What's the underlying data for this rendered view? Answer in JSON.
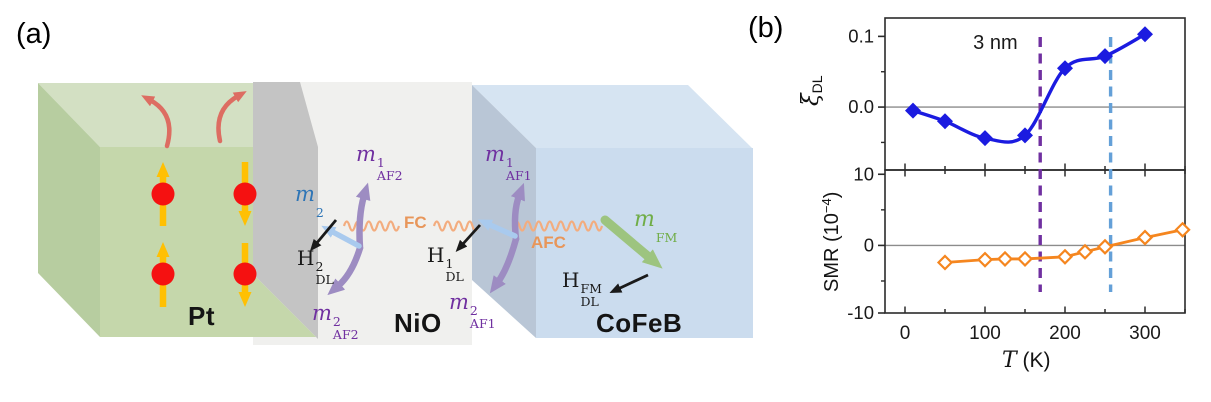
{
  "figure": {
    "panel_a_label": "(a)",
    "panel_b_label": "(b)"
  },
  "panel_a": {
    "layers": {
      "pt": "Pt",
      "nio": "NiO",
      "cofeb": "CoFeB"
    },
    "labels": {
      "m2": {
        "base": "m",
        "sub": "2"
      },
      "maf2_top": {
        "base": "m",
        "sup": "1",
        "sub": "AF2"
      },
      "maf2_bottom": {
        "base": "m",
        "sup": "2",
        "sub": "AF2"
      },
      "hdl2": {
        "base": "H",
        "sup": "2",
        "sub": "DL"
      },
      "fc": "FC",
      "maf1_top": {
        "base": "m",
        "sup": "1",
        "sub": "AF1"
      },
      "maf1_bottom": {
        "base": "m",
        "sup": "2",
        "sub": "AF1"
      },
      "hdl1": {
        "base": "H",
        "sup": "1",
        "sub": "DL"
      },
      "afc": "AFC",
      "mfm": {
        "base": "m",
        "sub": "FM"
      },
      "hdlfm": {
        "base": "H",
        "sup": "FM",
        "sub": "DL"
      }
    },
    "colors": {
      "pt_top": "#d3e0c3",
      "pt_front": "#c5d7ab",
      "pt_left": "#b7cda0",
      "interface_gray": "#c4c4c4",
      "nio_bg": "#f0f0ee",
      "cofeb_side": "#b9c6d6",
      "cofeb_top": "#d6e4f2",
      "cofeb_front": "#cbdcee",
      "spin_arrow": "#ffc003",
      "electron_dot": "#f51111",
      "deflect_arrow": "#dd6d62",
      "af_arrow": "#9d8cc2",
      "m_small_arrow": "#a9caee",
      "fm_arrow": "#9dc47f",
      "wave": "#f3ac7e",
      "field_arrow": "#1a1a1a",
      "m2_text": "#2e75b6",
      "af_text": "#7030a0",
      "fm_text": "#70ad47",
      "coupling_text": "#e8965a"
    }
  },
  "chart_style": {
    "axis": "#2b2b2b",
    "zero_line": "#8c8c8c",
    "tick_label": "#1a1a1a",
    "annotation": "#1a1a1a"
  },
  "chart_text": {
    "ylabel_top": {
      "base": "ξ",
      "sub": "DL"
    },
    "ylabel_bottom": {
      "base": "SMR (10",
      "sup": "−4",
      "suffix": ")"
    },
    "xlabel": {
      "base": "T",
      "suffix": " (K)"
    }
  },
  "chart_data": [
    {
      "id": "xi-dl-vs-T",
      "type": "scatter",
      "title": "",
      "xlabel": "T (K)",
      "ylabel": "ξ_DL",
      "xlim": [
        -25,
        350
      ],
      "ylim": [
        -0.089,
        0.126
      ],
      "x": [
        10,
        50,
        100,
        150,
        200,
        250,
        300
      ],
      "y": [
        -0.005,
        -0.02,
        -0.044,
        -0.04,
        0.055,
        0.072,
        0.103
      ],
      "yticks": {
        "major": [
          0.1,
          0.0
        ],
        "labels": [
          "0.1",
          "0.0"
        ],
        "minor": [
          0.05,
          -0.05
        ]
      },
      "xticks": {
        "major": [
          0,
          100,
          200,
          300
        ],
        "minor": [
          50,
          150,
          250,
          350
        ],
        "labels": []
      },
      "line_color": "#1b1be0",
      "marker": "diamond-filled",
      "smooth": true,
      "zero_line": true,
      "grid": false,
      "annotation": {
        "text": "3 nm",
        "x": 113,
        "y": 0.092
      }
    },
    {
      "id": "smr-vs-T",
      "type": "line",
      "title": "",
      "xlabel": "T (K)",
      "ylabel": "SMR (10⁻⁴)",
      "xlim": [
        -25,
        350
      ],
      "ylim": [
        -9.5,
        10.6
      ],
      "x": [
        50,
        100,
        125,
        150,
        200,
        225,
        250,
        300,
        347
      ],
      "y": [
        -2.4,
        -2.0,
        -1.9,
        -1.9,
        -1.6,
        -0.9,
        -0.2,
        1.1,
        2.2
      ],
      "yticks": {
        "major": [
          10,
          0,
          -10
        ],
        "labels": [
          "10",
          "0",
          "-10"
        ],
        "minor": [
          5,
          -5
        ]
      },
      "xticks": {
        "major": [
          0,
          100,
          200,
          300
        ],
        "minor": [
          50,
          150,
          250,
          350
        ],
        "labels": [
          "0",
          "100",
          "200",
          "300"
        ]
      },
      "line_color": "#f5861f",
      "marker": "diamond-open",
      "smooth": false,
      "zero_line": true,
      "grid": false
    }
  ],
  "vlines": [
    {
      "x": 169,
      "color": "#7030a0"
    },
    {
      "x": 257,
      "color": "#64a0d8"
    }
  ]
}
